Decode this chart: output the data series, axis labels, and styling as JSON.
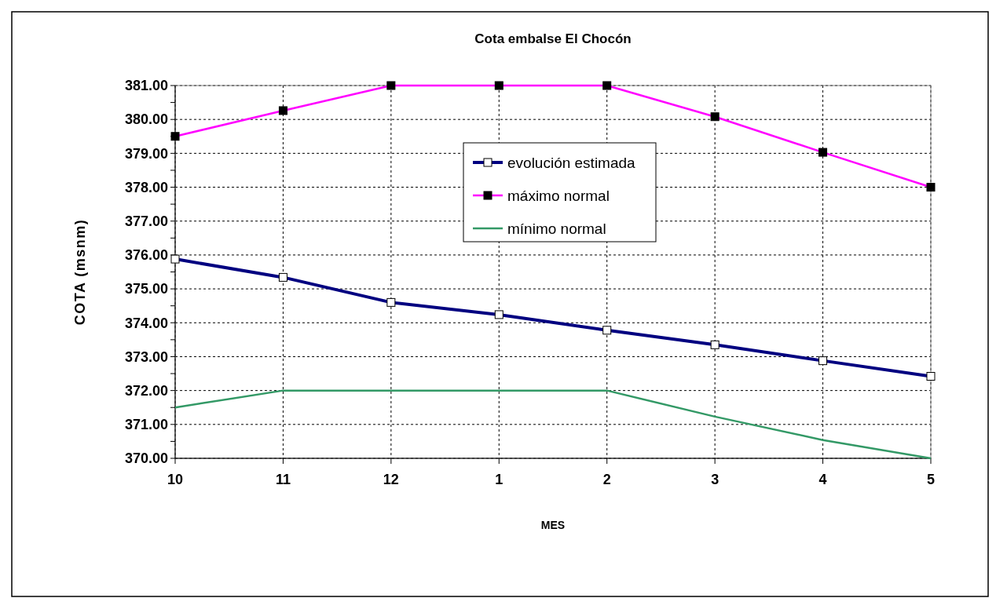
{
  "chart_data": {
    "type": "line",
    "title": "Cota embalse El Chocón",
    "xlabel": "MES",
    "ylabel": "COTA (msnm)",
    "categories": [
      "10",
      "11",
      "12",
      "1",
      "2",
      "3",
      "4",
      "5"
    ],
    "series": [
      {
        "name": "evolución estimada",
        "color": "#000080",
        "values": [
          375.88,
          375.34,
          374.6,
          374.24,
          373.78,
          373.35,
          372.88,
          372.42
        ],
        "marker": "square"
      },
      {
        "name": "máximo normal",
        "color": "#ff00ff",
        "values": [
          379.5,
          380.26,
          381,
          381,
          381,
          380.08,
          379.03,
          378
        ],
        "marker": "square"
      },
      {
        "name": "mínimo normal",
        "color": "#339966",
        "values": [
          371.5,
          372,
          372,
          372,
          372,
          371.23,
          370.54,
          370
        ],
        "marker": "none"
      }
    ],
    "ylim": [
      370,
      381
    ],
    "yticks": [
      {
        "value": 370,
        "label": "370.00"
      },
      {
        "value": 370.5,
        "label": null
      },
      {
        "value": 371,
        "label": "371.00"
      },
      {
        "value": 371.5,
        "label": null
      },
      {
        "value": 372,
        "label": "372.00"
      },
      {
        "value": 372.5,
        "label": null
      },
      {
        "value": 373,
        "label": "373.00"
      },
      {
        "value": 373.5,
        "label": null
      },
      {
        "value": 374,
        "label": "374.00"
      },
      {
        "value": 374.5,
        "label": null
      },
      {
        "value": 375,
        "label": "375.00"
      },
      {
        "value": 375.5,
        "label": null
      },
      {
        "value": 376,
        "label": "376.00"
      },
      {
        "value": 376.5,
        "label": null
      },
      {
        "value": 377,
        "label": "377.00"
      },
      {
        "value": 377.5,
        "label": null
      },
      {
        "value": 378,
        "label": "378.00"
      },
      {
        "value": 378.5,
        "label": null
      },
      {
        "value": 379,
        "label": "379.00"
      },
      {
        "value": 379.5,
        "label": null
      },
      {
        "value": 380,
        "label": "380.00"
      },
      {
        "value": 380.5,
        "label": null
      },
      {
        "value": 381,
        "label": "381.00"
      }
    ],
    "grid": true,
    "legend": "top right",
    "line_style": "solid"
  }
}
